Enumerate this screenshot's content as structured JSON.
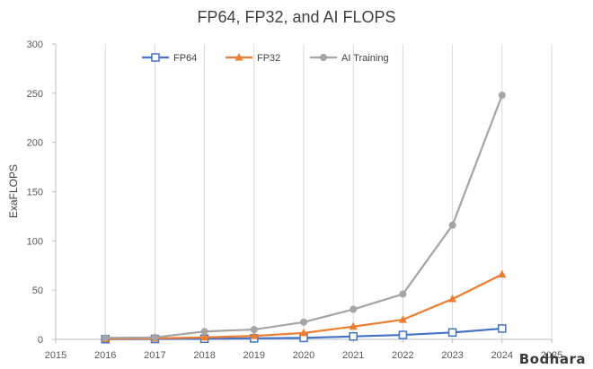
{
  "chart_data": {
    "type": "line",
    "title": "FP64, FP32, and AI FLOPS",
    "ylabel": "ExaFLOPS",
    "xlabel": "",
    "xlim": [
      2015,
      2025
    ],
    "ylim": [
      0,
      300
    ],
    "x_ticks": [
      "2015",
      "2016",
      "2017",
      "2018",
      "2019",
      "2020",
      "2021",
      "2022",
      "2023",
      "2024",
      "2025"
    ],
    "y_ticks": [
      "0",
      "50",
      "100",
      "150",
      "200",
      "250",
      "300"
    ],
    "x": [
      2016,
      2017,
      2018,
      2019,
      2020,
      2021,
      2022,
      2023,
      2024
    ],
    "grid": "vertical",
    "legend": "top-center",
    "series": [
      {
        "name": "FP64",
        "color": "#4472C4",
        "marker": "open-square",
        "values": [
          0.2,
          0.4,
          0.6,
          1,
          1.5,
          3,
          4.5,
          7,
          11
        ]
      },
      {
        "name": "FP32",
        "color": "#ED7D31",
        "marker": "triangle",
        "values": [
          0.5,
          1,
          2,
          3.5,
          6.5,
          13,
          20,
          41,
          66
        ]
      },
      {
        "name": "AI Training",
        "color": "#A5A5A5",
        "marker": "circle",
        "values": [
          1.5,
          2,
          8,
          10,
          17.5,
          30.5,
          46,
          116,
          248
        ]
      }
    ]
  },
  "watermark": "Bodhara"
}
